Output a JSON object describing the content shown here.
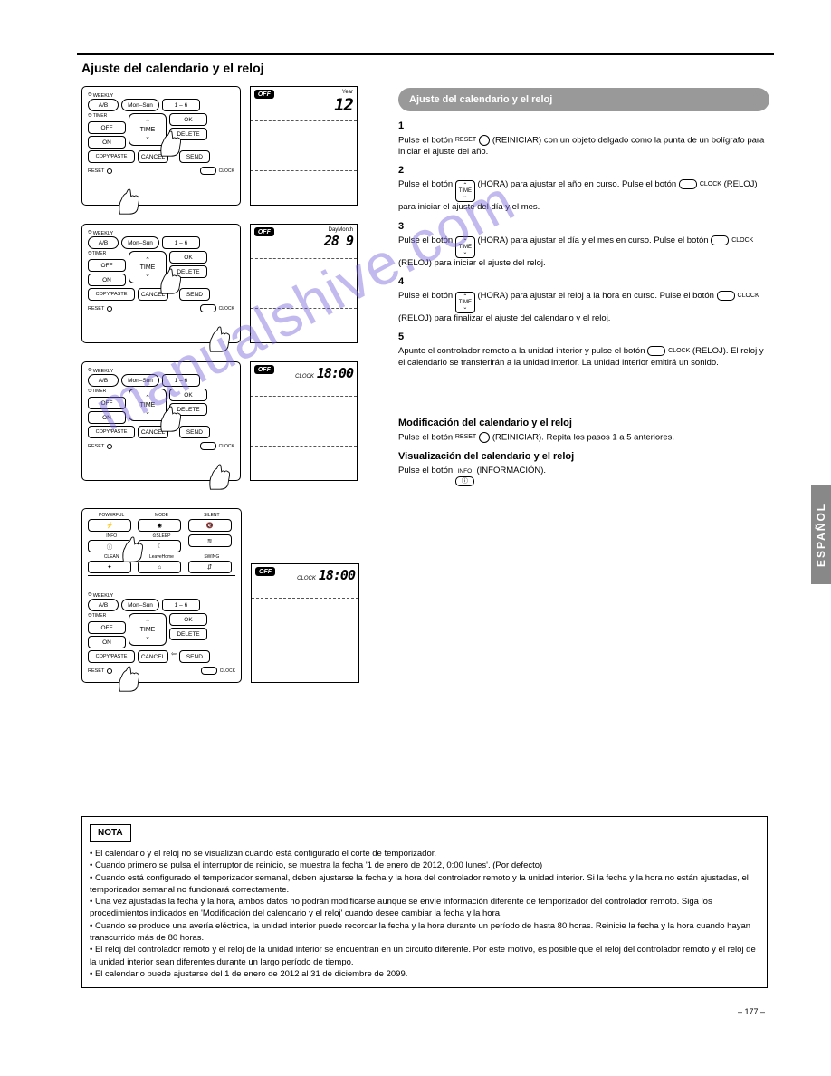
{
  "page_title": "Ajuste del calendario y el reloj",
  "sidebar_tab": "ESPAÑOL",
  "page_number": "– 177 –",
  "watermark": "manualshive.com",
  "grey_bar": "Ajuste del calendario y el reloj",
  "remote_labels": {
    "weekly": "WEEKLY",
    "ab": "A/B",
    "mon_sun": "Mon–Sun",
    "one_six": "1 – 6",
    "off": "OFF",
    "timer": "TIMER",
    "on": "ON",
    "time": "TIME",
    "ok": "OK",
    "delete": "DELETE",
    "copypaste": "COPY/PASTE",
    "cancel": "CANCEL",
    "send": "SEND",
    "reset": "RESET",
    "clock_small": "CLOCK",
    "powerful": "POWERFUL",
    "mode": "MODE",
    "silent": "SILENT",
    "info": "INFO",
    "sleep": "SLEEP",
    "clean": "CLEAN",
    "leavehome": "LeaveHome",
    "swing": "SWING"
  },
  "lcd": {
    "off": "OFF",
    "year_label": "Year",
    "year_val": "12",
    "daymonth_label": "DayMonth",
    "daymonth_val": "28 9",
    "clock_label": "CLOCK",
    "clock_val": "18:00"
  },
  "right_text": {
    "step1_title": "1",
    "step1_body_a": "Pulse el botón ",
    "step1_reset": "RESET",
    "step1_body_b": " (REINICIAR) con un objeto delgado como la punta de un bolígrafo para iniciar el ajuste del año.",
    "step2_title": "2",
    "step2_a": "Pulse el botón ",
    "step2_time": "(HORA)",
    "step2_b": " para ajustar el año en curso. Pulse el botón ",
    "step2_clock": "CLOCK",
    "step2_c": " (RELOJ) para iniciar el ajuste del día y el mes.",
    "step3_title": "3",
    "step3_a": "Pulse el botón ",
    "step3_b": " (HORA) para ajustar el día y el mes en curso. Pulse el botón ",
    "step3_c": " (RELOJ) para iniciar el ajuste del reloj.",
    "step4_title": "4",
    "step4_a": "Pulse el botón ",
    "step4_b": " (HORA) para ajustar el reloj a la hora en curso. Pulse el botón ",
    "step4_c": " (RELOJ) para finalizar el ajuste del calendario y el reloj.",
    "step5_title": "5",
    "step5_a": "Apunte el controlador remoto a la unidad interior y pulse el botón ",
    "step5_b": " (RELOJ). El reloj y el calendario se transferirán a la unidad interior. La unidad interior emitirá un sonido.",
    "step6_title": "Modificación del calendario y el reloj",
    "step6_a": "Pulse el botón ",
    "step6_b": " (REINICIAR). Repita los pasos 1 a 5 anteriores.",
    "step7_title": "Visualización del calendario y el reloj",
    "step7_a": "Pulse el botón ",
    "step7_b": " (INFORMACIÓN)."
  },
  "note": {
    "label": "NOTA",
    "lines": [
      "• El calendario y el reloj no se visualizan cuando está configurado el corte de temporizador.",
      "• Cuando primero se pulsa el interruptor de reinicio, se muestra la fecha '1 de enero de 2012, 0:00 lunes'. (Por defecto)",
      "• Cuando está configurado el temporizador semanal, deben ajustarse la fecha y la hora del controlador remoto y la unidad interior. Si la fecha y la hora no están ajustadas, el temporizador semanal no funcionará correctamente.",
      "• Una vez ajustadas la fecha y la hora, ambos datos no podrán modificarse aunque se envíe información diferente de temporizador del controlador remoto. Siga los procedimientos indicados en 'Modificación del calendario y el reloj' cuando desee cambiar la fecha y la hora.",
      "• Cuando se produce una avería eléctrica, la unidad interior puede recordar la fecha y la hora durante un período de hasta 80 horas. Reinicie la fecha y la hora cuando hayan transcurrido más de 80 horas.",
      "• El reloj del controlador remoto y el reloj de la unidad interior se encuentran en un circuito diferente. Por este motivo, es posible que el reloj del controlador remoto y el reloj de la unidad interior sean diferentes durante un largo período de tiempo.",
      "• El calendario puede ajustarse del 1 de enero de 2012 al 31 de diciembre de 2099."
    ]
  },
  "colors": {
    "page_bg": "#ffffff",
    "grey": "#999999",
    "side_grey": "#888888",
    "wm": "rgba(120,100,220,0.45)"
  }
}
